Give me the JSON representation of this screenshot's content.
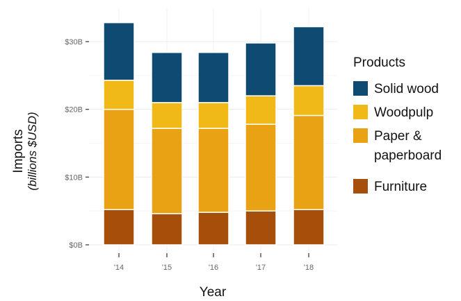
{
  "chart_data": {
    "type": "bar",
    "stacked": true,
    "categories": [
      "'14",
      "'15",
      "'16",
      "'17",
      "'18"
    ],
    "series": [
      {
        "name": "Furniture",
        "color": "#a64f0a",
        "values": [
          5.2,
          4.6,
          4.8,
          5.0,
          5.2
        ]
      },
      {
        "name": "Paper & paperboard",
        "color": "#e8a213",
        "values": [
          14.8,
          12.6,
          12.4,
          12.8,
          13.9
        ]
      },
      {
        "name": "Woodpulp",
        "color": "#f0b917",
        "values": [
          4.3,
          3.8,
          3.8,
          4.2,
          4.4
        ]
      },
      {
        "name": "Solid wood",
        "color": "#0f4a73",
        "values": [
          8.5,
          7.4,
          7.4,
          7.8,
          8.7
        ]
      }
    ],
    "xlabel": "Year",
    "ylabel": "Imports",
    "ylabel_sub": "(billions $USD)",
    "ylim": [
      0,
      35
    ],
    "yticks": [
      0,
      10,
      20,
      30
    ],
    "ytick_labels": [
      "$0B",
      "$10B",
      "$20B",
      "$30B"
    ],
    "grid": true,
    "legend": {
      "title": "Products",
      "position": "right",
      "items": [
        {
          "label_lines": [
            "Solid wood"
          ],
          "color": "#0f4a73"
        },
        {
          "label_lines": [
            "Woodpulp"
          ],
          "color": "#f0b917"
        },
        {
          "label_lines": [
            "Paper &",
            "paperboard"
          ],
          "color": "#e8a213"
        },
        {
          "label_lines": [
            "Furniture"
          ],
          "color": "#a64f0a"
        }
      ]
    }
  }
}
